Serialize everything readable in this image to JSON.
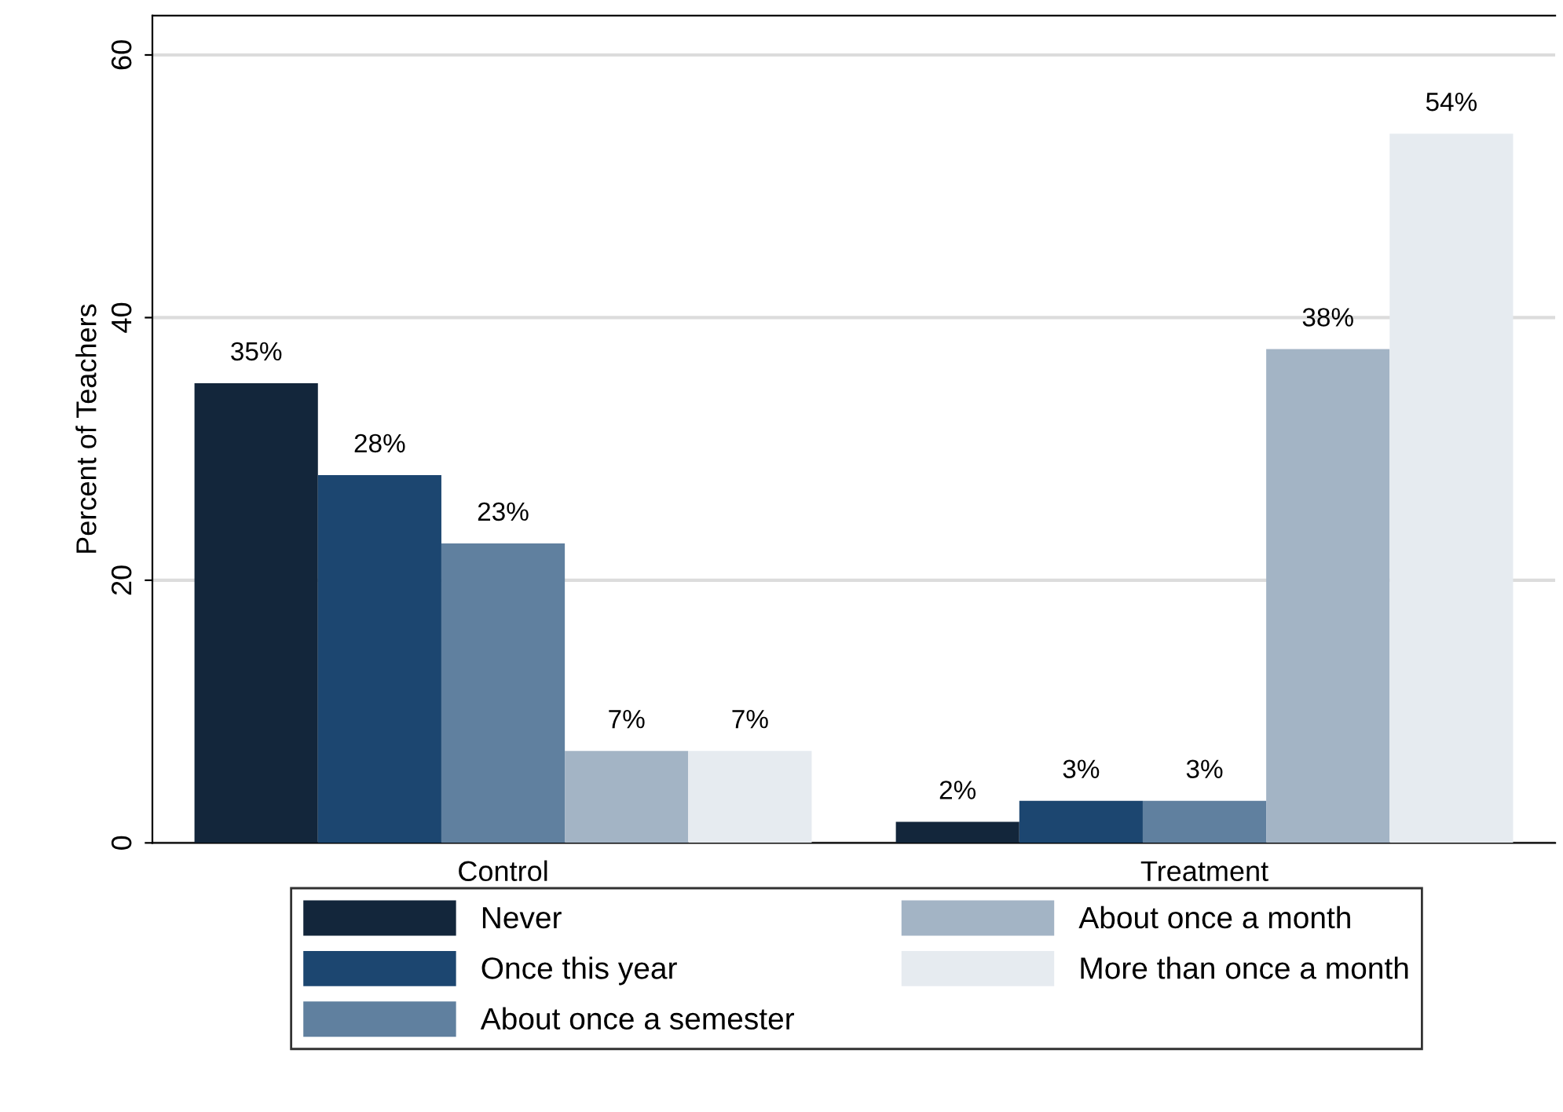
{
  "chart_data": {
    "type": "bar",
    "ylabel": "Percent of Teachers",
    "categories": [
      "Control",
      "Treatment"
    ],
    "series": [
      {
        "name": "Never",
        "color": "#13263b",
        "values": [
          35,
          1.6
        ],
        "value_labels": [
          "35%",
          "2%"
        ]
      },
      {
        "name": "Once this year",
        "color": "#1c4670",
        "values": [
          28,
          3.2
        ],
        "value_labels": [
          "28%",
          "3%"
        ]
      },
      {
        "name": "About once a semester",
        "color": "#60809f",
        "values": [
          22.8,
          3.2
        ],
        "value_labels": [
          "23%",
          "3%"
        ]
      },
      {
        "name": "About once a month",
        "color": "#a3b4c5",
        "values": [
          7,
          37.6
        ],
        "value_labels": [
          "7%",
          "38%"
        ]
      },
      {
        "name": "More than once a month",
        "color": "#e6ebf0",
        "values": [
          7,
          54
        ],
        "value_labels": [
          "7%",
          "54%"
        ]
      }
    ],
    "ylim": [
      0,
      63
    ],
    "yticks": [
      0,
      20,
      40,
      60
    ],
    "grid": "y",
    "legend": "bottom"
  }
}
